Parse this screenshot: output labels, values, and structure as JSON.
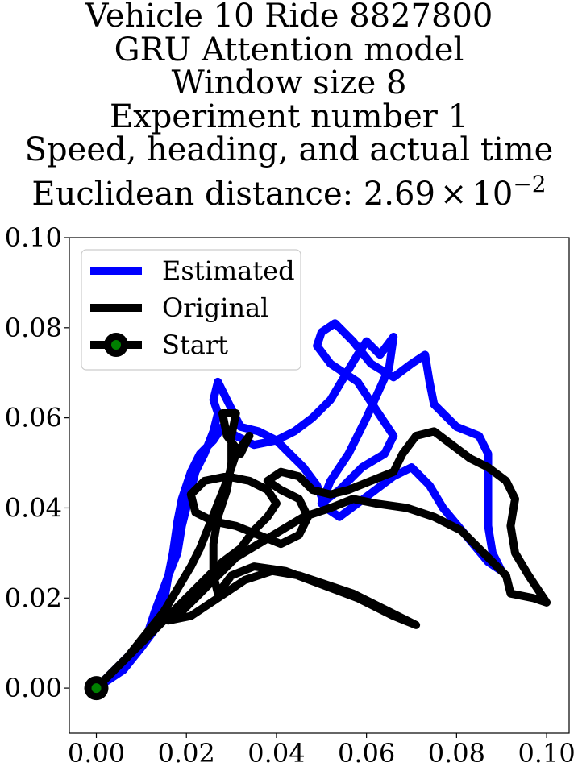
{
  "chart_data": {
    "type": "line",
    "title_lines": [
      "Vehicle 10 Ride 8827800",
      "GRU Attention model",
      "Window size 8",
      "Experiment number 1",
      "Speed, heading, and actual time"
    ],
    "title_distance_prefix": "Euclidean distance: ",
    "title_distance_mantissa": "2.69",
    "title_distance_times": "×",
    "title_distance_base": "10",
    "title_distance_exponent": "−2",
    "xlabel": "",
    "ylabel": "",
    "xlim": [
      -0.006,
      0.105
    ],
    "ylim": [
      -0.01,
      0.1
    ],
    "x_ticks": [
      0.0,
      0.02,
      0.04,
      0.06,
      0.08,
      0.1
    ],
    "x_tick_labels": [
      "0.00",
      "0.02",
      "0.04",
      "0.06",
      "0.08",
      "0.10"
    ],
    "y_ticks": [
      0.0,
      0.02,
      0.04,
      0.06,
      0.08,
      0.1
    ],
    "y_tick_labels": [
      "0.00",
      "0.02",
      "0.04",
      "0.06",
      "0.08",
      "0.10"
    ],
    "grid": false,
    "legend_position": "top-left",
    "series": [
      {
        "name": "Estimated",
        "color": "#0000ff",
        "points": [
          [
            0.0,
            0.0
          ],
          [
            0.008,
            0.008
          ],
          [
            0.011,
            0.011
          ],
          [
            0.013,
            0.017
          ],
          [
            0.016,
            0.025
          ],
          [
            0.017,
            0.03
          ],
          [
            0.018,
            0.037
          ],
          [
            0.019,
            0.042
          ],
          [
            0.021,
            0.048
          ],
          [
            0.023,
            0.052
          ],
          [
            0.026,
            0.055
          ],
          [
            0.028,
            0.058
          ],
          [
            0.031,
            0.056
          ],
          [
            0.035,
            0.054
          ],
          [
            0.04,
            0.055
          ],
          [
            0.044,
            0.057
          ],
          [
            0.048,
            0.06
          ],
          [
            0.052,
            0.064
          ],
          [
            0.055,
            0.069
          ],
          [
            0.058,
            0.074
          ],
          [
            0.06,
            0.077
          ],
          [
            0.063,
            0.074
          ],
          [
            0.066,
            0.078
          ],
          [
            0.065,
            0.071
          ],
          [
            0.06,
            0.06
          ],
          [
            0.056,
            0.052
          ],
          [
            0.052,
            0.046
          ],
          [
            0.05,
            0.041
          ],
          [
            0.054,
            0.044
          ],
          [
            0.059,
            0.049
          ],
          [
            0.064,
            0.052
          ],
          [
            0.066,
            0.056
          ],
          [
            0.062,
            0.062
          ],
          [
            0.058,
            0.068
          ],
          [
            0.052,
            0.072
          ],
          [
            0.049,
            0.076
          ],
          [
            0.05,
            0.079
          ],
          [
            0.053,
            0.081
          ],
          [
            0.057,
            0.077
          ],
          [
            0.061,
            0.072
          ],
          [
            0.066,
            0.069
          ],
          [
            0.07,
            0.072
          ],
          [
            0.073,
            0.074
          ],
          [
            0.074,
            0.068
          ],
          [
            0.075,
            0.063
          ],
          [
            0.08,
            0.058
          ],
          [
            0.085,
            0.056
          ],
          [
            0.087,
            0.052
          ],
          [
            0.087,
            0.045
          ],
          [
            0.087,
            0.036
          ],
          [
            0.088,
            0.03
          ],
          [
            0.09,
            0.026
          ],
          [
            0.087,
            0.028
          ],
          [
            0.082,
            0.034
          ],
          [
            0.077,
            0.04
          ],
          [
            0.074,
            0.045
          ],
          [
            0.07,
            0.049
          ],
          [
            0.066,
            0.047
          ],
          [
            0.062,
            0.044
          ],
          [
            0.058,
            0.041
          ],
          [
            0.054,
            0.038
          ],
          [
            0.051,
            0.04
          ],
          [
            0.049,
            0.045
          ],
          [
            0.046,
            0.049
          ],
          [
            0.043,
            0.052
          ],
          [
            0.04,
            0.055
          ],
          [
            0.036,
            0.057
          ],
          [
            0.032,
            0.058
          ],
          [
            0.03,
            0.062
          ],
          [
            0.028,
            0.066
          ],
          [
            0.027,
            0.068
          ],
          [
            0.026,
            0.064
          ],
          [
            0.027,
            0.061
          ],
          [
            0.026,
            0.057
          ],
          [
            0.024,
            0.052
          ],
          [
            0.022,
            0.048
          ],
          [
            0.021,
            0.044
          ],
          [
            0.02,
            0.04
          ],
          [
            0.019,
            0.036
          ],
          [
            0.018,
            0.03
          ],
          [
            0.016,
            0.025
          ],
          [
            0.015,
            0.019
          ],
          [
            0.013,
            0.013
          ],
          [
            0.01,
            0.009
          ],
          [
            0.006,
            0.004
          ],
          [
            0.0,
            0.0
          ]
        ]
      },
      {
        "name": "Original",
        "color": "#000000",
        "points": [
          [
            0.0,
            0.0
          ],
          [
            0.004,
            0.004
          ],
          [
            0.008,
            0.008
          ],
          [
            0.012,
            0.012
          ],
          [
            0.016,
            0.016
          ],
          [
            0.02,
            0.02
          ],
          [
            0.024,
            0.024
          ],
          [
            0.028,
            0.028
          ],
          [
            0.032,
            0.031
          ],
          [
            0.035,
            0.035
          ],
          [
            0.038,
            0.038
          ],
          [
            0.04,
            0.041
          ],
          [
            0.038,
            0.044
          ],
          [
            0.034,
            0.046
          ],
          [
            0.029,
            0.047
          ],
          [
            0.024,
            0.046
          ],
          [
            0.021,
            0.043
          ],
          [
            0.022,
            0.039
          ],
          [
            0.026,
            0.037
          ],
          [
            0.031,
            0.036
          ],
          [
            0.036,
            0.034
          ],
          [
            0.041,
            0.032
          ],
          [
            0.045,
            0.034
          ],
          [
            0.047,
            0.038
          ],
          [
            0.045,
            0.042
          ],
          [
            0.041,
            0.044
          ],
          [
            0.038,
            0.046
          ],
          [
            0.041,
            0.048
          ],
          [
            0.045,
            0.047
          ],
          [
            0.048,
            0.044
          ],
          [
            0.052,
            0.043
          ],
          [
            0.056,
            0.044
          ],
          [
            0.061,
            0.046
          ],
          [
            0.066,
            0.048
          ],
          [
            0.068,
            0.052
          ],
          [
            0.071,
            0.056
          ],
          [
            0.075,
            0.057
          ],
          [
            0.079,
            0.054
          ],
          [
            0.083,
            0.051
          ],
          [
            0.087,
            0.049
          ],
          [
            0.091,
            0.046
          ],
          [
            0.093,
            0.042
          ],
          [
            0.092,
            0.036
          ],
          [
            0.093,
            0.03
          ],
          [
            0.096,
            0.025
          ],
          [
            0.1,
            0.019
          ],
          [
            0.097,
            0.02
          ],
          [
            0.092,
            0.021
          ],
          [
            0.091,
            0.025
          ],
          [
            0.086,
            0.03
          ],
          [
            0.081,
            0.035
          ],
          [
            0.075,
            0.038
          ],
          [
            0.069,
            0.04
          ],
          [
            0.062,
            0.041
          ],
          [
            0.057,
            0.042
          ],
          [
            0.052,
            0.04
          ],
          [
            0.046,
            0.038
          ],
          [
            0.041,
            0.035
          ],
          [
            0.036,
            0.032
          ],
          [
            0.031,
            0.029
          ],
          [
            0.028,
            0.026
          ],
          [
            0.025,
            0.023
          ],
          [
            0.022,
            0.02
          ],
          [
            0.019,
            0.017
          ],
          [
            0.016,
            0.015
          ],
          [
            0.021,
            0.016
          ],
          [
            0.027,
            0.02
          ],
          [
            0.033,
            0.024
          ],
          [
            0.039,
            0.026
          ],
          [
            0.045,
            0.025
          ],
          [
            0.051,
            0.023
          ],
          [
            0.057,
            0.021
          ],
          [
            0.063,
            0.018
          ],
          [
            0.071,
            0.014
          ],
          [
            0.066,
            0.016
          ],
          [
            0.058,
            0.02
          ],
          [
            0.05,
            0.023
          ],
          [
            0.042,
            0.026
          ],
          [
            0.035,
            0.027
          ],
          [
            0.03,
            0.025
          ],
          [
            0.027,
            0.021
          ],
          [
            0.026,
            0.025
          ],
          [
            0.026,
            0.032
          ],
          [
            0.027,
            0.038
          ],
          [
            0.029,
            0.044
          ],
          [
            0.03,
            0.05
          ],
          [
            0.03,
            0.056
          ],
          [
            0.031,
            0.061
          ],
          [
            0.028,
            0.061
          ],
          [
            0.029,
            0.056
          ],
          [
            0.032,
            0.052
          ],
          [
            0.034,
            0.056
          ],
          [
            0.031,
            0.052
          ],
          [
            0.029,
            0.046
          ],
          [
            0.027,
            0.041
          ],
          [
            0.025,
            0.036
          ],
          [
            0.023,
            0.031
          ],
          [
            0.021,
            0.027
          ],
          [
            0.018,
            0.022
          ],
          [
            0.015,
            0.017
          ],
          [
            0.011,
            0.012
          ],
          [
            0.007,
            0.007
          ],
          [
            0.003,
            0.003
          ],
          [
            0.0,
            0.0
          ]
        ]
      }
    ],
    "start_point": {
      "name": "Start",
      "x": 0.0,
      "y": 0.0,
      "line_color": "#000000",
      "marker_face_color": "#008000",
      "marker_edge_color": "#000000"
    }
  }
}
